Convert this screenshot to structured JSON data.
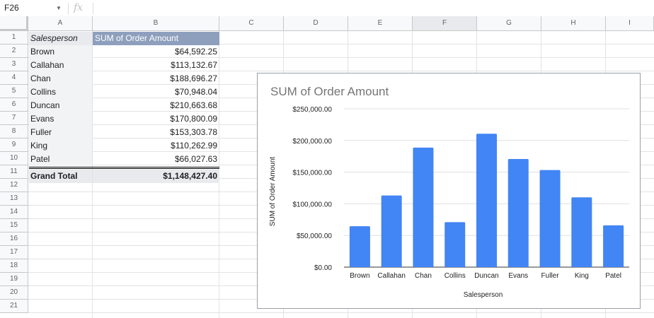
{
  "formula_bar": {
    "cell_ref": "F26",
    "fx": "fx"
  },
  "columns": [
    "A",
    "B",
    "C",
    "D",
    "E",
    "F",
    "G",
    "H",
    "I"
  ],
  "rows": [
    "1",
    "2",
    "3",
    "4",
    "5",
    "6",
    "7",
    "8",
    "9",
    "10",
    "11",
    "12",
    "13",
    "14",
    "15",
    "16",
    "17",
    "18",
    "19",
    "20",
    "21"
  ],
  "pivot": {
    "header_a": "Salesperson",
    "header_b": "SUM of Order Amount",
    "rows": [
      {
        "name": "Brown",
        "amount": "$64,592.25"
      },
      {
        "name": "Callahan",
        "amount": "$113,132.67"
      },
      {
        "name": "Chan",
        "amount": "$188,696.27"
      },
      {
        "name": "Collins",
        "amount": "$70,948.04"
      },
      {
        "name": "Duncan",
        "amount": "$210,663.68"
      },
      {
        "name": "Evans",
        "amount": "$170,800.09"
      },
      {
        "name": "Fuller",
        "amount": "$153,303.78"
      },
      {
        "name": "King",
        "amount": "$110,262.99"
      },
      {
        "name": "Patel",
        "amount": "$66,027.63"
      }
    ],
    "total_label": "Grand Total",
    "total_amount": "$1,148,427.40"
  },
  "chart_data": {
    "type": "bar",
    "title": "SUM of Order Amount",
    "xlabel": "Salesperson",
    "ylabel": "SUM of Order Amount",
    "categories": [
      "Brown",
      "Callahan",
      "Chan",
      "Collins",
      "Duncan",
      "Evans",
      "Fuller",
      "King",
      "Patel"
    ],
    "values": [
      64592.25,
      113132.67,
      188696.27,
      70948.04,
      210663.68,
      170800.09,
      153303.78,
      110262.99,
      66027.63
    ],
    "ylim": [
      0,
      250000
    ],
    "yticks": [
      0,
      50000,
      100000,
      150000,
      200000,
      250000
    ],
    "ytick_labels": [
      "$0.00",
      "$50,000.00",
      "$100,000.00",
      "$150,000.00",
      "$200,000.00",
      "$250,000.00"
    ],
    "grid": true,
    "bar_color": "#4285f4"
  }
}
